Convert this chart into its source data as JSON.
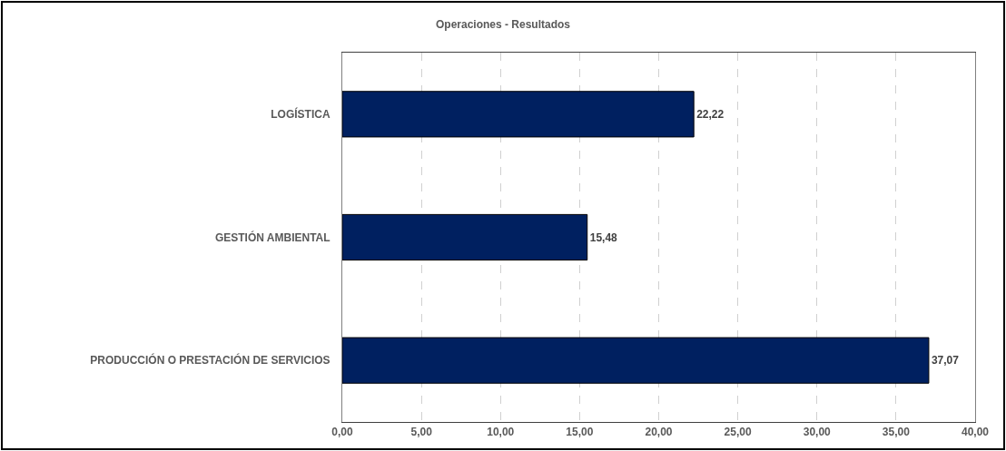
{
  "chart_data": {
    "type": "bar",
    "orientation": "horizontal",
    "title": "Operaciones - Resultados",
    "categories": [
      "LOGÍSTICA",
      "GESTIÓN AMBIENTAL",
      "PRODUCCIÓN O PRESTACIÓN DE SERVICIOS"
    ],
    "values": [
      22.22,
      15.48,
      37.07
    ],
    "value_labels": [
      "22,22",
      "15,48",
      "37,07"
    ],
    "color": "#002060",
    "xlim": [
      0,
      40
    ],
    "xticks": [
      {
        "value": 0,
        "label": "0,00"
      },
      {
        "value": 5,
        "label": "5,00"
      },
      {
        "value": 10,
        "label": "10,00"
      },
      {
        "value": 15,
        "label": "15,00"
      },
      {
        "value": 20,
        "label": "20,00"
      },
      {
        "value": 25,
        "label": "25,00"
      },
      {
        "value": 30,
        "label": "30,00"
      },
      {
        "value": 35,
        "label": "35,00"
      },
      {
        "value": 40,
        "label": "40,00"
      }
    ],
    "grid": "x"
  }
}
